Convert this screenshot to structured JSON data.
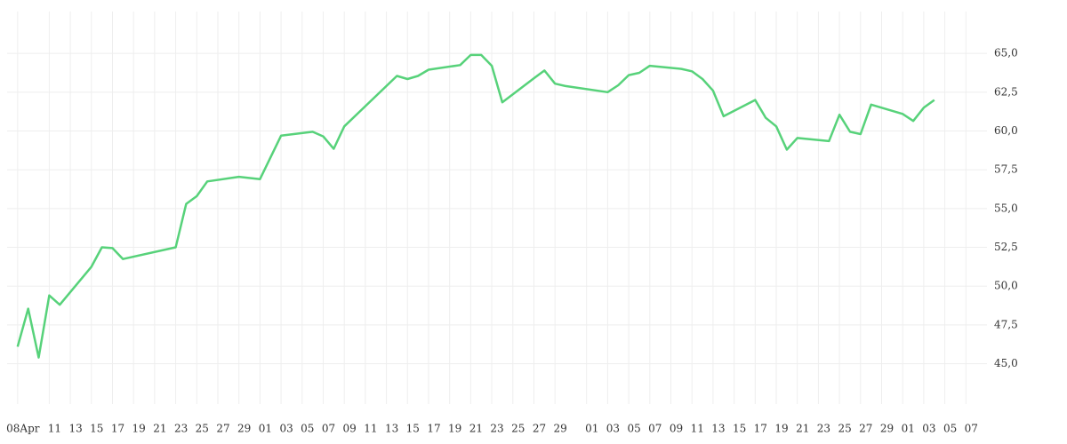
{
  "chart_data": {
    "type": "line",
    "x": [
      "04-08",
      "04-09",
      "04-10",
      "04-11",
      "04-12",
      "04-15",
      "04-16",
      "04-17",
      "04-18",
      "04-23",
      "04-24",
      "04-25",
      "04-26",
      "04-29",
      "05-01",
      "05-03",
      "05-06",
      "05-07",
      "05-08",
      "05-09",
      "05-14",
      "05-15",
      "05-16",
      "05-17",
      "05-20",
      "05-21",
      "05-22",
      "05-23",
      "05-24",
      "05-27",
      "05-28",
      "05-29",
      "05-30",
      "06-03",
      "06-04",
      "06-05",
      "06-06",
      "06-07",
      "06-10",
      "06-11",
      "06-12",
      "06-13",
      "06-14",
      "06-17",
      "06-18",
      "06-19",
      "06-20",
      "06-21",
      "06-24",
      "06-25",
      "06-26",
      "06-27",
      "06-28",
      "07-01",
      "07-02",
      "07-03",
      "07-04"
    ],
    "series": [
      {
        "color": "#57d27a",
        "values": [
          46.1,
          48.55,
          45.4,
          49.4,
          48.8,
          51.25,
          52.5,
          52.45,
          51.75,
          52.5,
          55.3,
          55.8,
          56.75,
          57.05,
          56.9,
          59.7,
          59.95,
          59.65,
          58.85,
          60.3,
          63.55,
          63.35,
          63.55,
          63.95,
          64.25,
          64.9,
          64.9,
          64.2,
          61.85,
          63.4,
          63.9,
          63.05,
          62.9,
          62.5,
          62.95,
          63.6,
          63.75,
          64.2,
          64.0,
          63.85,
          63.35,
          62.6,
          60.95,
          62.0,
          60.85,
          60.3,
          58.8,
          59.55,
          59.35,
          61.05,
          59.95,
          59.8,
          61.7,
          61.1,
          60.65,
          61.5,
          62.0
        ]
      }
    ],
    "xlim": [
      "04-07",
      "07-09"
    ],
    "xticks": [
      {
        "value": "04-08",
        "label": "08Apr"
      },
      {
        "value": "04-11",
        "label": "11"
      },
      {
        "value": "04-13",
        "label": "13"
      },
      {
        "value": "04-15",
        "label": "15"
      },
      {
        "value": "04-17",
        "label": "17"
      },
      {
        "value": "04-19",
        "label": "19"
      },
      {
        "value": "04-21",
        "label": "21"
      },
      {
        "value": "04-23",
        "label": "23"
      },
      {
        "value": "04-25",
        "label": "25"
      },
      {
        "value": "04-27",
        "label": "27"
      },
      {
        "value": "04-29",
        "label": "29"
      },
      {
        "value": "05-01",
        "label": "01"
      },
      {
        "value": "05-03",
        "label": "03"
      },
      {
        "value": "05-05",
        "label": "05"
      },
      {
        "value": "05-07",
        "label": "07"
      },
      {
        "value": "05-09",
        "label": "09"
      },
      {
        "value": "05-11",
        "label": "11"
      },
      {
        "value": "05-13",
        "label": "13"
      },
      {
        "value": "05-15",
        "label": "15"
      },
      {
        "value": "05-17",
        "label": "17"
      },
      {
        "value": "05-19",
        "label": "19"
      },
      {
        "value": "05-21",
        "label": "21"
      },
      {
        "value": "05-23",
        "label": "23"
      },
      {
        "value": "05-25",
        "label": "25"
      },
      {
        "value": "05-27",
        "label": "27"
      },
      {
        "value": "05-29",
        "label": "29"
      },
      {
        "value": "06-01",
        "label": "01"
      },
      {
        "value": "06-03",
        "label": "03"
      },
      {
        "value": "06-05",
        "label": "05"
      },
      {
        "value": "06-07",
        "label": "07"
      },
      {
        "value": "06-09",
        "label": "09"
      },
      {
        "value": "06-11",
        "label": "11"
      },
      {
        "value": "06-13",
        "label": "13"
      },
      {
        "value": "06-15",
        "label": "15"
      },
      {
        "value": "06-17",
        "label": "17"
      },
      {
        "value": "06-19",
        "label": "19"
      },
      {
        "value": "06-21",
        "label": "21"
      },
      {
        "value": "06-23",
        "label": "23"
      },
      {
        "value": "06-25",
        "label": "25"
      },
      {
        "value": "06-27",
        "label": "27"
      },
      {
        "value": "06-29",
        "label": "29"
      },
      {
        "value": "07-01",
        "label": "01"
      },
      {
        "value": "07-03",
        "label": "03"
      },
      {
        "value": "07-05",
        "label": "05"
      },
      {
        "value": "07-07",
        "label": "07"
      }
    ],
    "ylim": [
      42.4,
      67.7
    ],
    "yticks": [
      {
        "value": 45,
        "label": "45,0"
      },
      {
        "value": 47.5,
        "label": "47,5"
      },
      {
        "value": 50,
        "label": "50,0"
      },
      {
        "value": 52.5,
        "label": "52,5"
      },
      {
        "value": 55,
        "label": "55,0"
      },
      {
        "value": 57.5,
        "label": "57,5"
      },
      {
        "value": 60,
        "label": "60,0"
      },
      {
        "value": 62.5,
        "label": "62,5"
      },
      {
        "value": 65,
        "label": "65,0"
      }
    ],
    "grid": true
  }
}
